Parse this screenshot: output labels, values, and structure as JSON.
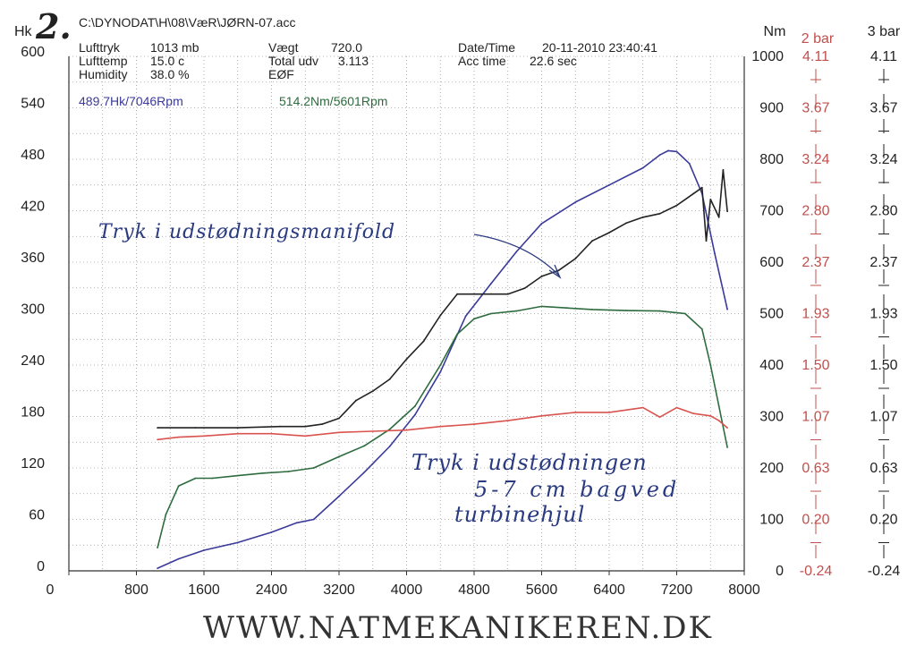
{
  "header": {
    "sheet_number": "2.",
    "file_path": "C:\\DYNODAT\\H\\08\\VæR\\JØRN-07.acc",
    "lufttryk_label": "Lufttryk",
    "lufttryk_value": "1013 mb",
    "lufttemp_label": "Lufttemp",
    "lufttemp_value": "15.0 c",
    "humidity_label": "Humidity",
    "humidity_value": "38.0 %",
    "vaegt_label": "Vægt",
    "vaegt_value": "720.0",
    "total_udv_label": "Total udv",
    "total_udv_value": "3.113",
    "eof_label": "EØF",
    "datetime_label": "Date/Time",
    "datetime_value": "20-11-2010 23:40:41",
    "acctime_label": "Acc time",
    "acctime_value": "22.6 sec"
  },
  "peak_labels": {
    "power": "489.7Hk/7046Rpm",
    "torque": "514.2Nm/5601Rpm"
  },
  "annotations": {
    "manifold": "Tryk i udstødningsmanifold",
    "exhaust_line1": "Tryk i udstødningen",
    "exhaust_line2": "5-7 cm bagved",
    "exhaust_line3": "turbinehjul"
  },
  "footer": "WWW.NATMEKANIKEREN.DK",
  "chart_data": {
    "type": "line",
    "x_axis": {
      "label": "",
      "ticks": [
        "0",
        "800",
        "1600",
        "2400",
        "3200",
        "4000",
        "4800",
        "5600",
        "6400",
        "7200",
        "8000"
      ],
      "range": [
        0,
        8000
      ]
    },
    "y_axes": [
      {
        "id": "hk",
        "label": "Hk",
        "range": [
          0,
          600
        ],
        "ticks": [
          "0",
          "60",
          "120",
          "180",
          "240",
          "300",
          "360",
          "420",
          "480",
          "540",
          "600"
        ],
        "color": "#222222"
      },
      {
        "id": "nm",
        "label": "Nm",
        "range": [
          0,
          1000
        ],
        "ticks": [
          "0",
          "100",
          "200",
          "300",
          "400",
          "500",
          "600",
          "700",
          "800",
          "900",
          "1000"
        ],
        "color": "#222222"
      },
      {
        "id": "bar2",
        "label": "2 bar",
        "range": [
          -0.24,
          4.11
        ],
        "ticks": [
          "-0.24",
          "0.20",
          "0.63",
          "1.07",
          "1.50",
          "1.93",
          "2.37",
          "2.80",
          "3.24",
          "3.67",
          "4.11"
        ],
        "color": "#c0504d"
      },
      {
        "id": "bar3",
        "label": "3 bar",
        "range": [
          -0.24,
          4.11
        ],
        "ticks": [
          "-0.24",
          "0.20",
          "0.63",
          "1.07",
          "1.50",
          "1.93",
          "2.37",
          "2.80",
          "3.24",
          "3.67",
          "4.11"
        ],
        "color": "#222222"
      }
    ],
    "grid": true,
    "series": [
      {
        "axis": "hk",
        "color": "#3a3a9a",
        "x": [
          1050,
          1300,
          1600,
          2000,
          2400,
          2700,
          2900,
          3200,
          3500,
          3800,
          4100,
          4400,
          4700,
          5000,
          5300,
          5600,
          6000,
          6400,
          6800,
          7000,
          7100,
          7200,
          7350,
          7500,
          7650,
          7800
        ],
        "y": [
          3,
          14,
          24,
          33,
          45,
          56,
          60,
          87,
          115,
          145,
          182,
          232,
          297,
          335,
          372,
          405,
          430,
          450,
          470,
          485,
          490,
          489,
          475,
          440,
          370,
          305
        ]
      },
      {
        "axis": "nm",
        "color": "#2e6b3e",
        "x": [
          1050,
          1150,
          1300,
          1500,
          1700,
          2000,
          2300,
          2600,
          2900,
          3200,
          3500,
          3800,
          4100,
          4400,
          4600,
          4800,
          5000,
          5300,
          5601,
          5900,
          6200,
          6600,
          7000,
          7300,
          7500,
          7600,
          7700,
          7800
        ],
        "y": [
          45,
          110,
          165,
          180,
          180,
          185,
          190,
          193,
          200,
          222,
          243,
          275,
          320,
          400,
          460,
          490,
          500,
          505,
          514,
          511,
          508,
          506,
          505,
          500,
          470,
          400,
          320,
          240
        ]
      },
      {
        "axis": "bar2",
        "color": "#222222",
        "x": [
          1050,
          1500,
          2000,
          2500,
          2800,
          3000,
          3200,
          3400,
          3600,
          3800,
          4000,
          4200,
          4400,
          4600,
          4800,
          5000,
          5200,
          5400,
          5600,
          5800,
          6000,
          6200,
          6400,
          6600,
          6800,
          7000,
          7200,
          7400,
          7500,
          7550,
          7600,
          7700,
          7750,
          7800
        ],
        "y": [
          0.97,
          0.97,
          0.97,
          0.98,
          0.98,
          1.0,
          1.05,
          1.2,
          1.28,
          1.38,
          1.55,
          1.7,
          1.92,
          2.1,
          2.1,
          2.1,
          2.1,
          2.15,
          2.25,
          2.3,
          2.4,
          2.55,
          2.62,
          2.7,
          2.75,
          2.78,
          2.85,
          2.95,
          3.0,
          2.55,
          2.9,
          2.75,
          3.15,
          2.8
        ]
      },
      {
        "axis": "bar3",
        "color": "#d9534f",
        "x": [
          1050,
          1300,
          1600,
          2000,
          2400,
          2800,
          3200,
          3600,
          4000,
          4400,
          4800,
          5200,
          5600,
          6000,
          6400,
          6800,
          7000,
          7200,
          7400,
          7600,
          7700,
          7800
        ],
        "y": [
          0.87,
          0.89,
          0.9,
          0.92,
          0.92,
          0.9,
          0.93,
          0.94,
          0.95,
          0.98,
          1.0,
          1.03,
          1.07,
          1.1,
          1.1,
          1.14,
          1.06,
          1.14,
          1.09,
          1.07,
          1.03,
          0.97
        ]
      }
    ]
  }
}
